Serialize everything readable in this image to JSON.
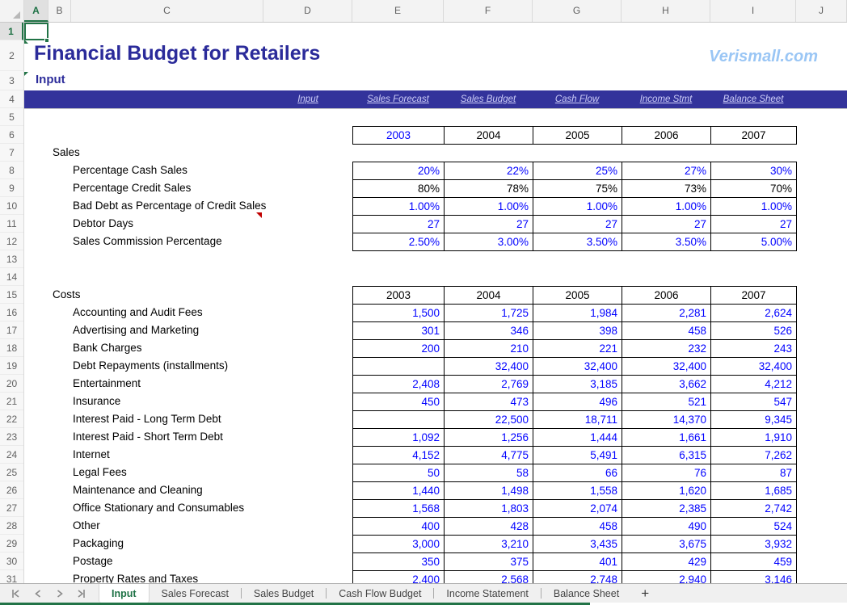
{
  "grid": {
    "columns": [
      "A",
      "B",
      "C",
      "D",
      "E",
      "F",
      "G",
      "H",
      "I",
      "J"
    ],
    "selected_column": "A",
    "row_count": 31,
    "selected_row": "1",
    "selected_cell": "A1"
  },
  "header": {
    "title": "Financial Budget for Retailers",
    "sheet_label": "Input",
    "brand": "Verismall.com"
  },
  "nav": {
    "links": [
      "Input",
      "Sales Forecast",
      "Sales Budget",
      "Cash Flow",
      "Income Stmt",
      "Balance Sheet"
    ]
  },
  "colors": {
    "accent_blue": "#33339B",
    "title_blue": "#2B2B9A",
    "brand_blue": "#9AC6F5",
    "value_blue": "#0000FF",
    "excel_green": "#217346",
    "comment_red": "#C00000"
  },
  "sales": {
    "section_label": "Sales",
    "years": [
      {
        "label": "2003",
        "color": "blue"
      },
      {
        "label": "2004",
        "color": "black"
      },
      {
        "label": "2005",
        "color": "black"
      },
      {
        "label": "2006",
        "color": "black"
      },
      {
        "label": "2007",
        "color": "black"
      }
    ],
    "rows": [
      {
        "label": "Percentage Cash Sales",
        "values": [
          "20%",
          "22%",
          "25%",
          "27%",
          "30%"
        ],
        "color": "blue",
        "has_comment": false
      },
      {
        "label": "Percentage Credit Sales",
        "values": [
          "80%",
          "78%",
          "75%",
          "73%",
          "70%"
        ],
        "color": "black",
        "has_comment": false
      },
      {
        "label": "Bad Debt as Percentage of Credit Sales",
        "values": [
          "1.00%",
          "1.00%",
          "1.00%",
          "1.00%",
          "1.00%"
        ],
        "color": "blue",
        "has_comment": true
      },
      {
        "label": "Debtor Days",
        "values": [
          "27",
          "27",
          "27",
          "27",
          "27"
        ],
        "color": "blue",
        "has_comment": false
      },
      {
        "label": "Sales Commission Percentage",
        "values": [
          "2.50%",
          "3.00%",
          "3.50%",
          "3.50%",
          "5.00%"
        ],
        "color": "blue",
        "has_comment": false
      }
    ]
  },
  "costs": {
    "section_label": "Costs",
    "years": [
      {
        "label": "2003",
        "color": "black"
      },
      {
        "label": "2004",
        "color": "black"
      },
      {
        "label": "2005",
        "color": "black"
      },
      {
        "label": "2006",
        "color": "black"
      },
      {
        "label": "2007",
        "color": "black"
      }
    ],
    "rows": [
      {
        "label": "Accounting and Audit Fees",
        "values": [
          "1,500",
          "1,725",
          "1,984",
          "2,281",
          "2,624"
        ],
        "color": "blue"
      },
      {
        "label": "Advertising and Marketing",
        "values": [
          "301",
          "346",
          "398",
          "458",
          "526"
        ],
        "color": "blue"
      },
      {
        "label": "Bank Charges",
        "values": [
          "200",
          "210",
          "221",
          "232",
          "243"
        ],
        "color": "blue"
      },
      {
        "label": "Debt Repayments (installments)",
        "values": [
          "",
          "32,400",
          "32,400",
          "32,400",
          "32,400"
        ],
        "color": "blue"
      },
      {
        "label": "Entertainment",
        "values": [
          "2,408",
          "2,769",
          "3,185",
          "3,662",
          "4,212"
        ],
        "color": "blue"
      },
      {
        "label": "Insurance",
        "values": [
          "450",
          "473",
          "496",
          "521",
          "547"
        ],
        "color": "blue"
      },
      {
        "label": "Interest Paid - Long Term Debt",
        "values": [
          "",
          "22,500",
          "18,711",
          "14,370",
          "9,345"
        ],
        "color": "blue"
      },
      {
        "label": "Interest Paid - Short Term Debt",
        "values": [
          "1,092",
          "1,256",
          "1,444",
          "1,661",
          "1,910"
        ],
        "color": "blue"
      },
      {
        "label": "Internet",
        "values": [
          "4,152",
          "4,775",
          "5,491",
          "6,315",
          "7,262"
        ],
        "color": "blue"
      },
      {
        "label": "Legal Fees",
        "values": [
          "50",
          "58",
          "66",
          "76",
          "87"
        ],
        "color": "blue"
      },
      {
        "label": "Maintenance and Cleaning",
        "values": [
          "1,440",
          "1,498",
          "1,558",
          "1,620",
          "1,685"
        ],
        "color": "blue"
      },
      {
        "label": "Office Stationary and Consumables",
        "values": [
          "1,568",
          "1,803",
          "2,074",
          "2,385",
          "2,742"
        ],
        "color": "blue"
      },
      {
        "label": "Other",
        "values": [
          "400",
          "428",
          "458",
          "490",
          "524"
        ],
        "color": "blue"
      },
      {
        "label": "Packaging",
        "values": [
          "3,000",
          "3,210",
          "3,435",
          "3,675",
          "3,932"
        ],
        "color": "blue"
      },
      {
        "label": "Postage",
        "values": [
          "350",
          "375",
          "401",
          "429",
          "459"
        ],
        "color": "blue"
      },
      {
        "label": "Property Rates and Taxes",
        "values": [
          "2,400",
          "2,568",
          "2,748",
          "2,940",
          "3,146"
        ],
        "color": "blue"
      }
    ]
  },
  "tab_bar": {
    "tabs": [
      {
        "label": "Input",
        "active": true
      },
      {
        "label": "Sales Forecast",
        "active": false
      },
      {
        "label": "Sales Budget",
        "active": false
      },
      {
        "label": "Cash Flow Budget",
        "active": false
      },
      {
        "label": "Income Statement",
        "active": false
      },
      {
        "label": "Balance Sheet",
        "active": false
      }
    ],
    "add_label": "+"
  }
}
